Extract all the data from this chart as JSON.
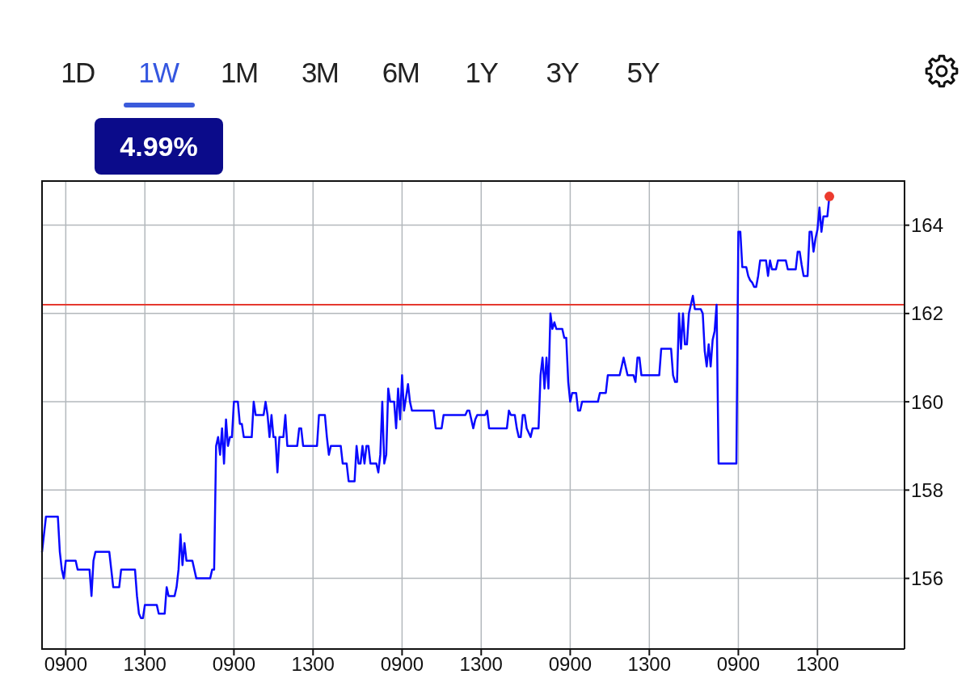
{
  "chart_data": {
    "type": "line",
    "annotations": [
      "1D",
      "1W",
      "1M",
      "3M",
      "6M",
      "1Y",
      "3Y",
      "5Y",
      "4.99%"
    ],
    "categories": [
      null,
      null,
      null,
      null,
      null,
      null,
      null,
      null,
      null,
      null,
      null,
      null,
      "0900",
      null,
      null,
      null,
      null,
      null,
      null,
      null,
      null,
      null,
      null,
      null,
      null,
      null,
      null,
      null,
      null,
      null,
      null,
      null,
      null,
      null,
      null,
      null,
      null,
      null,
      null,
      null,
      null,
      null,
      null,
      null,
      null,
      null,
      null,
      null,
      null,
      null,
      null,
      null,
      "1300",
      null,
      null,
      null,
      null,
      null,
      null,
      null,
      null,
      null,
      null,
      null,
      null,
      null,
      null,
      null,
      null,
      null,
      null,
      null,
      null,
      null,
      null,
      null,
      null,
      null,
      null,
      null,
      null,
      null,
      null,
      null,
      null,
      null,
      null,
      null,
      null,
      null,
      null,
      null,
      null,
      null,
      null,
      null,
      null,
      "0900",
      null,
      null,
      null,
      null,
      null,
      null,
      null,
      null,
      null,
      null,
      null,
      null,
      null,
      null,
      null,
      null,
      null,
      null,
      null,
      null,
      null,
      null,
      null,
      null,
      null,
      null,
      null,
      null,
      null,
      null,
      null,
      null,
      null,
      null,
      null,
      null,
      null,
      null,
      null,
      "1300",
      null,
      null,
      null,
      null,
      null,
      null,
      null,
      null,
      null,
      null,
      null,
      null,
      null,
      null,
      null,
      null,
      null,
      null,
      null,
      null,
      null,
      null,
      null,
      null,
      null,
      null,
      null,
      null,
      null,
      null,
      null,
      null,
      null,
      null,
      null,
      null,
      null,
      null,
      null,
      null,
      null,
      null,
      null,
      null,
      "0900",
      null,
      null,
      null,
      null,
      null,
      null,
      null,
      null,
      null,
      null,
      null,
      null,
      null,
      null,
      null,
      null,
      null,
      null,
      null,
      null,
      null,
      null,
      null,
      null,
      null,
      null,
      null,
      null,
      null,
      null,
      null,
      null,
      null,
      null,
      null,
      null,
      null,
      null,
      null,
      "1300",
      null,
      null,
      null,
      null,
      null,
      null,
      null,
      null,
      null,
      null,
      null,
      null,
      null,
      null,
      null,
      null,
      null,
      null,
      null,
      null,
      null,
      null,
      null,
      null,
      null,
      null,
      null,
      null,
      null,
      null,
      null,
      null,
      null,
      null,
      null,
      null,
      null,
      null,
      null,
      null,
      null,
      null,
      null,
      null,
      "0900",
      null,
      null,
      null,
      null,
      null,
      null,
      null,
      null,
      null,
      null,
      null,
      null,
      null,
      null,
      null,
      null,
      null,
      null,
      null,
      null,
      null,
      null,
      null,
      null,
      null,
      null,
      null,
      null,
      null,
      null,
      null,
      null,
      null,
      null,
      null,
      null,
      null,
      null,
      null,
      "1300",
      null,
      null,
      null,
      null,
      null,
      null,
      null,
      null,
      null,
      null,
      null,
      null,
      null,
      null,
      null,
      null,
      null,
      null,
      null,
      null,
      null,
      null,
      null,
      null,
      null,
      null,
      null,
      null,
      null,
      null,
      null,
      null,
      null,
      null,
      null,
      null,
      null,
      null,
      null,
      null,
      null,
      null,
      null,
      null,
      "0900",
      null,
      null,
      null,
      null,
      null,
      null,
      null,
      null,
      null,
      null,
      null,
      null,
      null,
      null,
      null,
      null,
      null,
      null,
      null,
      null,
      null,
      null,
      null,
      null,
      null,
      null,
      null,
      null,
      null,
      null,
      null,
      null,
      null,
      null,
      null,
      null,
      null,
      null,
      null,
      "1300",
      null,
      null,
      null,
      null,
      null,
      null,
      null,
      null,
      null,
      null,
      null,
      null,
      null,
      null,
      null,
      null,
      null,
      null,
      null,
      null,
      null,
      null,
      null,
      null,
      null,
      null,
      null,
      null,
      null,
      null,
      null,
      null,
      null,
      null,
      null,
      null,
      null,
      null,
      null,
      null,
      null,
      null,
      null,
      null
    ],
    "series": [
      {
        "color": "#0a0aff",
        "values": [
          156.6,
          157.0,
          157.4,
          157.4,
          157.4,
          157.4,
          157.4,
          157.4,
          157.4,
          156.6,
          156.2,
          156.0,
          156.4,
          156.4,
          156.4,
          156.4,
          156.4,
          156.4,
          156.2,
          156.2,
          156.2,
          156.2,
          156.2,
          156.2,
          156.2,
          155.6,
          156.4,
          156.6,
          156.6,
          156.6,
          156.6,
          156.6,
          156.6,
          156.6,
          156.6,
          156.2,
          155.8,
          155.8,
          155.8,
          155.8,
          156.2,
          156.2,
          156.2,
          156.2,
          156.2,
          156.2,
          156.2,
          156.2,
          155.6,
          155.2,
          155.1,
          155.1,
          155.4,
          155.4,
          155.4,
          155.4,
          155.4,
          155.4,
          155.4,
          155.2,
          155.2,
          155.2,
          155.2,
          155.8,
          155.6,
          155.6,
          155.6,
          155.6,
          155.8,
          156.2,
          157.0,
          156.3,
          156.8,
          156.4,
          156.4,
          156.4,
          156.4,
          156.2,
          156.0,
          156.0,
          156.0,
          156.0,
          156.0,
          156.0,
          156.0,
          156.0,
          156.2,
          156.2,
          159.0,
          159.2,
          158.8,
          159.4,
          158.6,
          159.6,
          159.0,
          159.2,
          159.2,
          160.0,
          160.0,
          160.0,
          159.5,
          159.5,
          159.2,
          159.2,
          159.2,
          159.2,
          159.2,
          160.0,
          159.7,
          159.7,
          159.7,
          159.7,
          159.7,
          160.0,
          159.7,
          159.2,
          159.7,
          159.2,
          159.2,
          158.4,
          159.2,
          159.2,
          159.2,
          159.7,
          159.0,
          159.0,
          159.0,
          159.0,
          159.0,
          159.0,
          159.4,
          159.4,
          159.0,
          159.0,
          159.0,
          159.0,
          159.0,
          159.0,
          159.0,
          159.0,
          159.7,
          159.7,
          159.7,
          159.7,
          159.2,
          158.8,
          159.0,
          159.0,
          159.0,
          159.0,
          159.0,
          159.0,
          158.6,
          158.6,
          158.6,
          158.2,
          158.2,
          158.2,
          158.2,
          159.0,
          158.6,
          158.6,
          159.0,
          158.6,
          159.0,
          159.0,
          158.6,
          158.6,
          158.6,
          158.6,
          158.4,
          158.8,
          160.0,
          158.6,
          158.8,
          160.3,
          160.0,
          160.0,
          160.0,
          159.4,
          160.3,
          159.6,
          160.6,
          159.8,
          160.1,
          160.4,
          160.0,
          159.8,
          159.8,
          159.8,
          159.8,
          159.8,
          159.8,
          159.8,
          159.8,
          159.8,
          159.8,
          159.8,
          159.8,
          159.4,
          159.4,
          159.4,
          159.4,
          159.7,
          159.7,
          159.7,
          159.7,
          159.7,
          159.7,
          159.7,
          159.7,
          159.7,
          159.7,
          159.7,
          159.7,
          159.8,
          159.8,
          159.6,
          159.4,
          159.6,
          159.7,
          159.7,
          159.7,
          159.7,
          159.7,
          159.8,
          159.4,
          159.4,
          159.4,
          159.4,
          159.4,
          159.4,
          159.4,
          159.4,
          159.4,
          159.4,
          159.8,
          159.7,
          159.7,
          159.7,
          159.4,
          159.2,
          159.2,
          159.7,
          159.7,
          159.4,
          159.3,
          159.2,
          159.4,
          159.4,
          159.4,
          159.4,
          160.6,
          161.0,
          160.3,
          161.0,
          160.3,
          162.0,
          161.65,
          161.8,
          161.65,
          161.65,
          161.65,
          161.65,
          161.45,
          161.45,
          160.45,
          160.0,
          160.2,
          160.2,
          160.2,
          159.8,
          159.8,
          160.0,
          160.0,
          160.0,
          160.0,
          160.0,
          160.0,
          160.0,
          160.0,
          160.0,
          160.2,
          160.2,
          160.2,
          160.2,
          160.6,
          160.6,
          160.6,
          160.6,
          160.6,
          160.6,
          160.6,
          160.8,
          161.0,
          160.8,
          160.6,
          160.6,
          160.6,
          160.6,
          160.45,
          161.0,
          161.0,
          160.6,
          160.6,
          160.6,
          160.6,
          160.6,
          160.6,
          160.6,
          160.6,
          160.6,
          160.6,
          161.2,
          161.2,
          161.2,
          161.2,
          161.2,
          161.2,
          160.6,
          160.45,
          160.45,
          162.0,
          161.2,
          162.0,
          161.3,
          161.3,
          162.0,
          162.2,
          162.4,
          162.1,
          162.1,
          162.1,
          162.1,
          162.0,
          161.15,
          160.8,
          161.3,
          160.8,
          161.4,
          161.6,
          162.2,
          158.6,
          158.6,
          158.6,
          158.6,
          158.6,
          158.6,
          158.6,
          158.6,
          158.6,
          158.6,
          163.85,
          163.85,
          163.05,
          163.05,
          163.05,
          162.85,
          162.75,
          162.7,
          162.6,
          162.6,
          162.85,
          163.2,
          163.2,
          163.2,
          163.2,
          162.85,
          163.2,
          163.0,
          163.0,
          163.0,
          163.2,
          163.2,
          163.2,
          163.2,
          163.2,
          163.0,
          163.0,
          163.0,
          163.0,
          163.0,
          163.4,
          163.4,
          163.1,
          162.85,
          162.85,
          162.85,
          163.85,
          163.85,
          163.4,
          163.7,
          163.9,
          164.4,
          163.85,
          164.2,
          164.2,
          164.2,
          164.65,
          null,
          null,
          null,
          null,
          null,
          null,
          null,
          null,
          null,
          null,
          null,
          null,
          null,
          null,
          null,
          null,
          null,
          null,
          null,
          null,
          null,
          null,
          null,
          null,
          null,
          null,
          null,
          null,
          null,
          null,
          null,
          null,
          null,
          null,
          null,
          null,
          null,
          null
        ]
      },
      {
        "type": "scatter",
        "color": "#ec3b2e",
        "marker": "circle",
        "values": [
          null,
          null,
          null,
          null,
          null,
          null,
          null,
          null,
          null,
          null,
          null,
          null,
          null,
          null,
          null,
          null,
          null,
          null,
          null,
          null,
          null,
          null,
          null,
          null,
          null,
          null,
          null,
          null,
          null,
          null,
          null,
          null,
          null,
          null,
          null,
          null,
          null,
          null,
          null,
          null,
          null,
          null,
          null,
          null,
          null,
          null,
          null,
          null,
          null,
          null,
          null,
          null,
          null,
          null,
          null,
          null,
          null,
          null,
          null,
          null,
          null,
          null,
          null,
          null,
          null,
          null,
          null,
          null,
          null,
          null,
          null,
          null,
          null,
          null,
          null,
          null,
          null,
          null,
          null,
          null,
          null,
          null,
          null,
          null,
          null,
          null,
          null,
          null,
          null,
          null,
          null,
          null,
          null,
          null,
          null,
          null,
          null,
          null,
          null,
          null,
          null,
          null,
          null,
          null,
          null,
          null,
          null,
          null,
          null,
          null,
          null,
          null,
          null,
          null,
          null,
          null,
          null,
          null,
          null,
          null,
          null,
          null,
          null,
          null,
          null,
          null,
          null,
          null,
          null,
          null,
          null,
          null,
          null,
          null,
          null,
          null,
          null,
          null,
          null,
          null,
          null,
          null,
          null,
          null,
          null,
          null,
          null,
          null,
          null,
          null,
          null,
          null,
          null,
          null,
          null,
          null,
          null,
          null,
          null,
          null,
          null,
          null,
          null,
          null,
          null,
          null,
          null,
          null,
          null,
          null,
          null,
          null,
          null,
          null,
          null,
          null,
          null,
          null,
          null,
          null,
          null,
          null,
          null,
          null,
          null,
          null,
          null,
          null,
          null,
          null,
          null,
          null,
          null,
          null,
          null,
          null,
          null,
          null,
          null,
          null,
          null,
          null,
          null,
          null,
          null,
          null,
          null,
          null,
          null,
          null,
          null,
          null,
          null,
          null,
          null,
          null,
          null,
          null,
          null,
          null,
          null,
          null,
          null,
          null,
          null,
          null,
          null,
          null,
          null,
          null,
          null,
          null,
          null,
          null,
          null,
          null,
          null,
          null,
          null,
          null,
          null,
          null,
          null,
          null,
          null,
          null,
          null,
          null,
          null,
          null,
          null,
          null,
          null,
          null,
          null,
          null,
          null,
          null,
          null,
          null,
          null,
          null,
          null,
          null,
          null,
          null,
          null,
          null,
          null,
          null,
          null,
          null,
          null,
          null,
          null,
          null,
          null,
          null,
          null,
          null,
          null,
          null,
          null,
          null,
          null,
          null,
          null,
          null,
          null,
          null,
          null,
          null,
          null,
          null,
          null,
          null,
          null,
          null,
          null,
          null,
          null,
          null,
          null,
          null,
          null,
          null,
          null,
          null,
          null,
          null,
          null,
          null,
          null,
          null,
          null,
          null,
          null,
          null,
          null,
          null,
          null,
          null,
          null,
          null,
          null,
          null,
          null,
          null,
          null,
          null,
          null,
          null,
          null,
          null,
          null,
          null,
          null,
          null,
          null,
          null,
          null,
          null,
          null,
          null,
          null,
          null,
          null,
          null,
          null,
          null,
          null,
          null,
          null,
          null,
          null,
          null,
          null,
          null,
          null,
          null,
          null,
          null,
          null,
          null,
          null,
          null,
          null,
          null,
          null,
          null,
          null,
          null,
          null,
          null,
          null,
          null,
          null,
          null,
          null,
          null,
          null,
          null,
          null,
          null,
          null,
          null,
          null,
          null,
          null,
          null,
          null,
          null,
          null,
          null,
          null,
          null,
          null,
          null,
          164.65,
          null,
          null,
          null,
          null,
          null,
          null,
          null,
          null,
          null,
          null,
          null,
          null,
          null,
          null,
          null,
          null,
          null,
          null,
          null,
          null,
          null,
          null,
          null,
          null,
          null,
          null,
          null,
          null,
          null,
          null,
          null,
          null,
          null,
          null,
          null,
          null,
          null,
          null
        ]
      }
    ],
    "ylim": [
      154.4,
      165
    ],
    "yticks": [
      156,
      158,
      160,
      162,
      164
    ],
    "grid": true,
    "ref_lines": [
      {
        "axis": "y",
        "value": 162.2,
        "color": "#e5392f"
      }
    ]
  }
}
